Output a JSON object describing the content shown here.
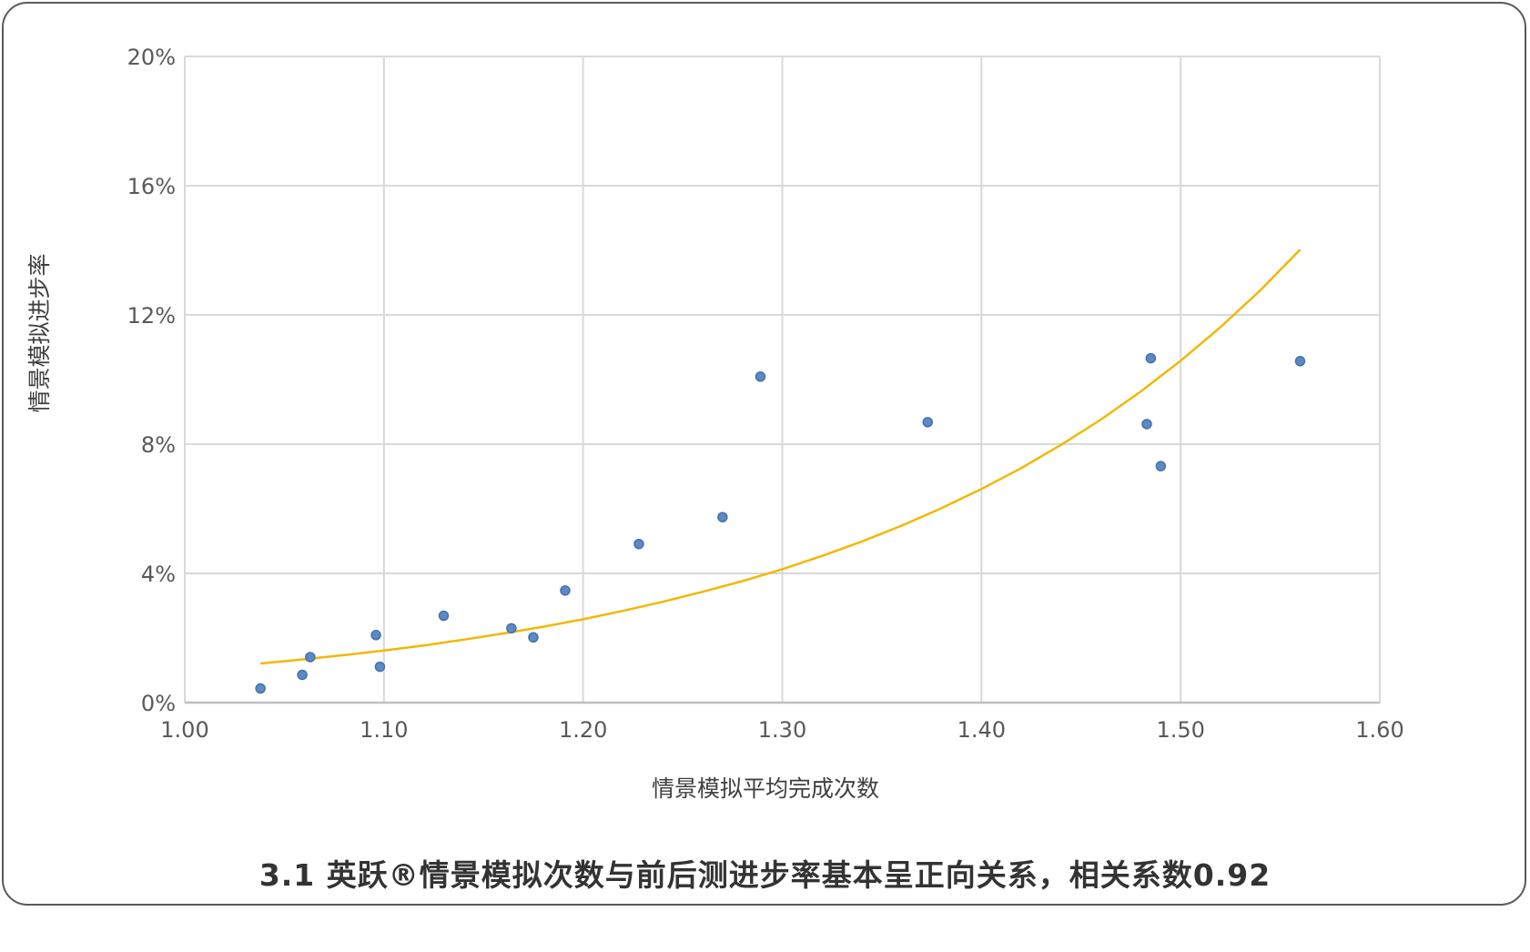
{
  "caption": "3.1 英跃®情景模拟次数与前后测进步率基本呈正向关系，相关系数0.92",
  "colors": {
    "grid": "#d9d9d9",
    "axis": "#bfbfbf",
    "point_fill": "#5b8ac6",
    "point_stroke": "#4472a8",
    "trend": "#f2b705"
  },
  "chart_data": {
    "type": "scatter",
    "xlabel": "情景模拟平均完成次数",
    "ylabel": "情景模拟进步率",
    "xlim": [
      1.0,
      1.6
    ],
    "ylim": [
      0,
      0.2
    ],
    "x_ticks": [
      1.0,
      1.1,
      1.2,
      1.3,
      1.4,
      1.5,
      1.6
    ],
    "x_tick_labels": [
      "1.00",
      "1.10",
      "1.20",
      "1.30",
      "1.40",
      "1.50",
      "1.60"
    ],
    "y_ticks": [
      0,
      0.04,
      0.08,
      0.12,
      0.16,
      0.2
    ],
    "y_tick_labels": [
      "0%",
      "4%",
      "8%",
      "12%",
      "16%",
      "20%"
    ],
    "grid": true,
    "points": [
      {
        "x": 1.038,
        "y": 0.0044
      },
      {
        "x": 1.059,
        "y": 0.0086
      },
      {
        "x": 1.063,
        "y": 0.0141
      },
      {
        "x": 1.096,
        "y": 0.0209
      },
      {
        "x": 1.098,
        "y": 0.0111
      },
      {
        "x": 1.13,
        "y": 0.0269
      },
      {
        "x": 1.164,
        "y": 0.023
      },
      {
        "x": 1.175,
        "y": 0.0202
      },
      {
        "x": 1.191,
        "y": 0.0347
      },
      {
        "x": 1.228,
        "y": 0.0491
      },
      {
        "x": 1.27,
        "y": 0.0574
      },
      {
        "x": 1.289,
        "y": 0.1009
      },
      {
        "x": 1.373,
        "y": 0.0868
      },
      {
        "x": 1.483,
        "y": 0.0862
      },
      {
        "x": 1.485,
        "y": 0.1066
      },
      {
        "x": 1.49,
        "y": 0.0732
      },
      {
        "x": 1.56,
        "y": 0.1057
      }
    ],
    "trendline": {
      "type": "exponential",
      "x": [
        1.038,
        1.06,
        1.08,
        1.1,
        1.12,
        1.14,
        1.16,
        1.18,
        1.2,
        1.22,
        1.24,
        1.26,
        1.28,
        1.3,
        1.32,
        1.34,
        1.36,
        1.38,
        1.4,
        1.42,
        1.44,
        1.46,
        1.48,
        1.5,
        1.52,
        1.54,
        1.56
      ],
      "y": [
        0.0121,
        0.0134,
        0.0147,
        0.0161,
        0.0177,
        0.0195,
        0.0214,
        0.0235,
        0.0258,
        0.0284,
        0.0312,
        0.0343,
        0.0376,
        0.0413,
        0.0454,
        0.0499,
        0.0548,
        0.0602,
        0.0661,
        0.0726,
        0.0798,
        0.0876,
        0.0963,
        0.1058,
        0.1162,
        0.1276,
        0.1402
      ]
    }
  }
}
